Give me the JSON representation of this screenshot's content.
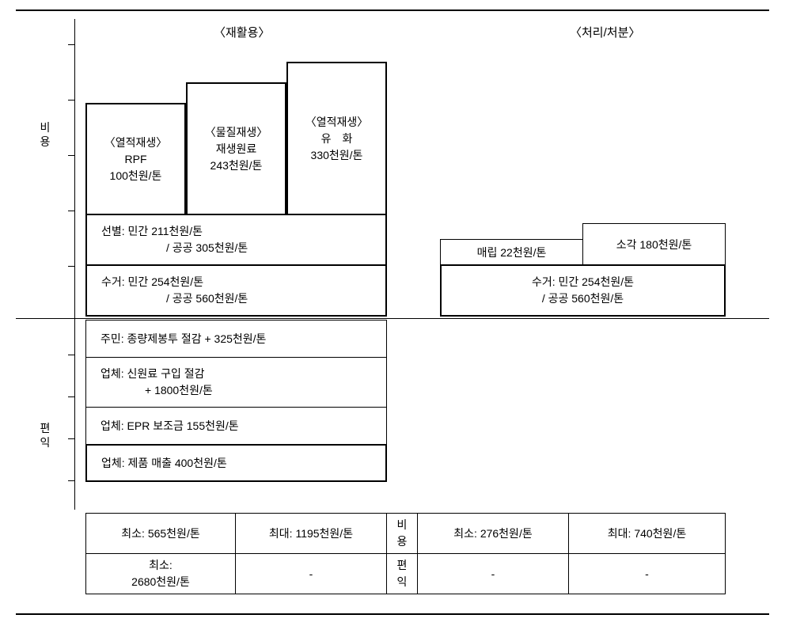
{
  "headers": {
    "recycle": "〈재활용〉",
    "disposal": "〈처리/처분〉"
  },
  "vlabels": {
    "cost1": "비",
    "cost2": "용",
    "benefit1": "편",
    "benefit2": "익"
  },
  "top_boxes": {
    "rpf": {
      "t": "〈열적재생〉",
      "l1": "RPF",
      "l2": "100천원/톤"
    },
    "material": {
      "t": "〈물질재생〉",
      "l1": "재생원료",
      "l2": "243천원/톤"
    },
    "oil": {
      "t": "〈열적재생〉",
      "l1": "유　화",
      "l2": "330천원/톤"
    }
  },
  "sort": {
    "l1": "선별: 민간 211천원/톤",
    "l2": "/ 공공 305천원/톤"
  },
  "collect_left": {
    "l1": "수거: 민간 254천원/톤",
    "l2": "/ 공공 560천원/톤"
  },
  "landfill": "매립 22천원/톤",
  "incin": "소각 180천원/톤",
  "collect_right": {
    "l1": "수거: 민간 254천원/톤",
    "l2": "/ 공공 560천원/톤"
  },
  "benefit": {
    "resident": "주민: 종량제봉투 절감 + 325천원/톤",
    "comp1a": "업체: 신원료 구입 절감",
    "comp1b": "+ 1800천원/톤",
    "comp2": "업체:   EPR 보조금 155천원/톤",
    "comp3": "업체:   제품 매출 400천원/톤"
  },
  "summary": {
    "r_cost_min": "최소: 565천원/톤",
    "r_cost_max": "최대: 1195천원/톤",
    "r_ben_min1": "최소:",
    "r_ben_min2": "2680천원/톤",
    "dash": "-",
    "d_cost_min": "최소: 276천원/톤",
    "d_cost_max": "최대: 740천원/톤",
    "mid_cost1": "비",
    "mid_cost2": "용",
    "mid_ben1": "편",
    "mid_ben2": "익"
  },
  "ticks": [
    44,
    114,
    184,
    254,
    324,
    436,
    489,
    542,
    595
  ],
  "style": {
    "fg": "#000000",
    "bg": "#ffffff"
  }
}
